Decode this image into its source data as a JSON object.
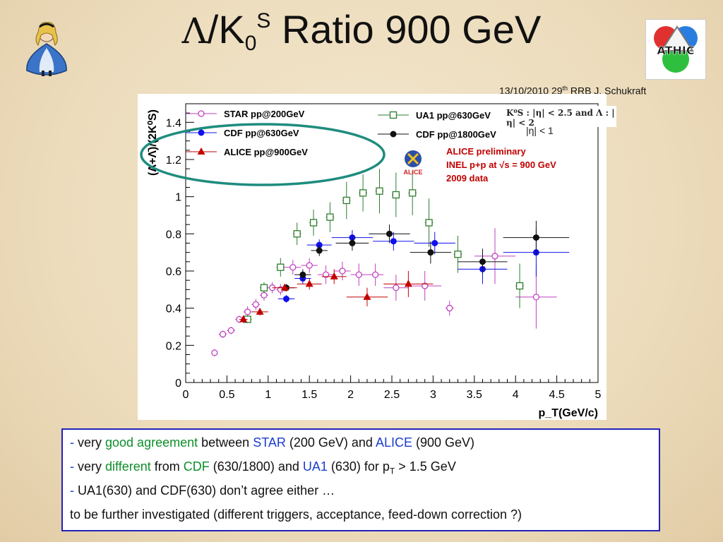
{
  "slide": {
    "title_symbol": "Λ",
    "title_slash": "/K",
    "title_sub": "0",
    "title_sup": "S",
    "title_rest": "Ratio 900 GeV",
    "meta_date": "13/10/2010 29",
    "meta_sup": "th",
    "meta_rest": " RRB J. Schukraft",
    "cut_line1": "K⁰S : |η| < 2.5 and Λ : |η| < 2",
    "cut_line2": "|η| < 1",
    "logo_right_text": "ATHIC"
  },
  "notes": {
    "line1": {
      "dash": "-",
      "p1": " very ",
      "h1": "good agreement",
      "p2": " between ",
      "h2": "STAR",
      "p3": " (200 GeV) and ",
      "h3": "ALICE",
      "p4": " (900 GeV)"
    },
    "line2": {
      "dash": "-",
      "p1": " very ",
      "h1": "different",
      "p2": " from ",
      "h2": "CDF",
      "p3": " (630/1800) and ",
      "h3": "UA1",
      "p4": " (630) for  p",
      "sub": "T",
      "p5": " > 1.5 GeV"
    },
    "line3": {
      "dash": "-",
      "p1": " UA1(630) and CDF(630) don’t agree either …"
    },
    "line4": {
      "p1": "to be further investigated (different triggers, acceptance, feed-down correction ?)"
    }
  },
  "chart_data": {
    "type": "scatter",
    "xlabel": "p_T(GeV/c)",
    "ylabel": "(Λ+Λ̄)/(2K⁰S)",
    "xlim": [
      0,
      5
    ],
    "ylim": [
      0,
      1.5
    ],
    "x_ticks": [
      "0",
      "0.5",
      "1",
      "1.5",
      "2",
      "2.5",
      "3",
      "3.5",
      "4",
      "4.5",
      "5"
    ],
    "y_ticks": [
      "0",
      "0.2",
      "0.4",
      "0.6",
      "0.8",
      "1",
      "1.2",
      "1.4"
    ],
    "annotation_lines": [
      "ALICE preliminary",
      "INEL p+p at √s = 900 GeV",
      "2009 data"
    ],
    "annotation_color": "#c00000",
    "series": [
      {
        "name": "STAR pp@200GeV",
        "color": "#c040c0",
        "marker": "circle-open",
        "points": [
          [
            0.35,
            0.16,
            0.01,
            0.02
          ],
          [
            0.45,
            0.26,
            0.05,
            0.02
          ],
          [
            0.55,
            0.28,
            0.05,
            0.02
          ],
          [
            0.65,
            0.34,
            0.05,
            0.02
          ],
          [
            0.75,
            0.38,
            0.05,
            0.03
          ],
          [
            0.85,
            0.42,
            0.05,
            0.03
          ],
          [
            0.95,
            0.47,
            0.05,
            0.03
          ],
          [
            1.05,
            0.51,
            0.05,
            0.03
          ],
          [
            1.15,
            0.5,
            0.05,
            0.03
          ],
          [
            1.3,
            0.62,
            0.1,
            0.04
          ],
          [
            1.5,
            0.63,
            0.1,
            0.04
          ],
          [
            1.7,
            0.58,
            0.1,
            0.05
          ],
          [
            1.9,
            0.6,
            0.1,
            0.05
          ],
          [
            2.1,
            0.58,
            0.1,
            0.06
          ],
          [
            2.3,
            0.58,
            0.1,
            0.06
          ],
          [
            2.55,
            0.51,
            0.15,
            0.07
          ],
          [
            2.9,
            0.52,
            0.2,
            0.08
          ],
          [
            3.2,
            0.4,
            0.05,
            0.04
          ],
          [
            3.75,
            0.68,
            0.25,
            0.15
          ],
          [
            4.25,
            0.46,
            0.25,
            0.17
          ]
        ]
      },
      {
        "name": "UA1 pp@630GeV",
        "color": "#2e7d2e",
        "marker": "square-open",
        "points": [
          [
            0.75,
            0.34,
            0.05,
            0.02
          ],
          [
            0.95,
            0.51,
            0.05,
            0.03
          ],
          [
            1.15,
            0.62,
            0.05,
            0.05
          ],
          [
            1.35,
            0.8,
            0.05,
            0.06
          ],
          [
            1.55,
            0.86,
            0.05,
            0.07
          ],
          [
            1.75,
            0.89,
            0.05,
            0.08
          ],
          [
            1.95,
            0.98,
            0.05,
            0.1
          ],
          [
            2.15,
            1.02,
            0.05,
            0.1
          ],
          [
            2.35,
            1.03,
            0.05,
            0.12
          ],
          [
            2.55,
            1.01,
            0.05,
            0.12
          ],
          [
            2.75,
            1.02,
            0.05,
            0.12
          ],
          [
            2.95,
            0.86,
            0.05,
            0.13
          ],
          [
            3.3,
            0.69,
            0.05,
            0.1
          ],
          [
            4.05,
            0.52,
            0.05,
            0.12
          ]
        ]
      },
      {
        "name": "CDF pp@630GeV",
        "color": "#1010ee",
        "marker": "circle-filled",
        "points": [
          [
            1.22,
            0.45,
            0.1,
            0.02
          ],
          [
            1.42,
            0.56,
            0.1,
            0.03
          ],
          [
            1.62,
            0.74,
            0.15,
            0.03
          ],
          [
            2.02,
            0.78,
            0.25,
            0.04
          ],
          [
            2.52,
            0.76,
            0.25,
            0.05
          ],
          [
            3.02,
            0.75,
            0.25,
            0.06
          ],
          [
            3.6,
            0.61,
            0.3,
            0.08
          ],
          [
            4.25,
            0.7,
            0.4,
            0.13
          ]
        ]
      },
      {
        "name": "CDF pp@1800GeV",
        "color": "#111111",
        "marker": "circle-filled",
        "points": [
          [
            1.22,
            0.51,
            0.1,
            0.02
          ],
          [
            1.42,
            0.58,
            0.1,
            0.03
          ],
          [
            1.62,
            0.71,
            0.1,
            0.03
          ],
          [
            2.02,
            0.75,
            0.2,
            0.04
          ],
          [
            2.47,
            0.8,
            0.25,
            0.05
          ],
          [
            2.97,
            0.7,
            0.25,
            0.06
          ],
          [
            3.6,
            0.65,
            0.3,
            0.07
          ],
          [
            4.25,
            0.78,
            0.4,
            0.09
          ]
        ]
      },
      {
        "name": "ALICE pp@900GeV",
        "color": "#c00000",
        "marker": "triangle",
        "points": [
          [
            0.7,
            0.34,
            0.05,
            0.02
          ],
          [
            0.9,
            0.38,
            0.1,
            0.02
          ],
          [
            1.2,
            0.51,
            0.15,
            0.02
          ],
          [
            1.5,
            0.53,
            0.15,
            0.03
          ],
          [
            1.8,
            0.57,
            0.15,
            0.04
          ],
          [
            2.2,
            0.46,
            0.25,
            0.05
          ],
          [
            2.7,
            0.53,
            0.3,
            0.07
          ]
        ]
      }
    ]
  }
}
